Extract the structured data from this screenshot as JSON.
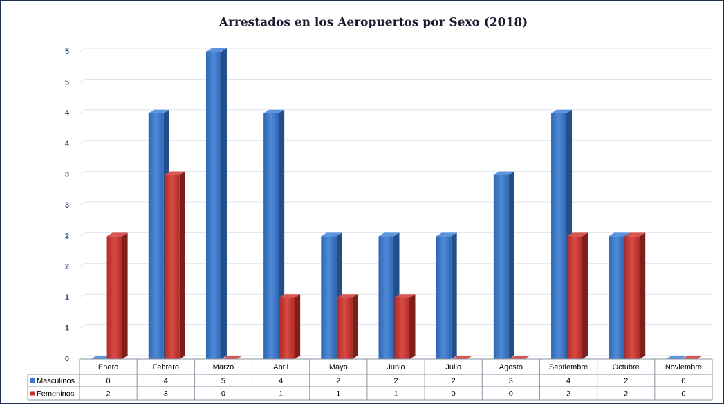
{
  "chart_data": {
    "type": "bar3d",
    "title": "Arrestados en los Aeropuertos por Sexo (2018)",
    "categories": [
      "Enero",
      "Febrero",
      "Marzo",
      "Abril",
      "Mayo",
      "Junio",
      "Julio",
      "Agosto",
      "Septiembre",
      "Octubre",
      "Noviembre"
    ],
    "series": [
      {
        "name": "Masculinos",
        "color": "#3a78c9",
        "values": [
          0,
          4,
          5,
          4,
          2,
          2,
          2,
          3,
          4,
          2,
          0
        ]
      },
      {
        "name": "Femeninos",
        "color": "#c9302c",
        "values": [
          2,
          3,
          0,
          1,
          1,
          1,
          0,
          0,
          2,
          2,
          0
        ]
      }
    ],
    "ylim": [
      0,
      5
    ],
    "yticks": [
      0,
      {
        "value": 0.5,
        "label": "1"
      },
      1,
      {
        "value": 1.5,
        "label": "2"
      },
      2,
      {
        "value": 2.5,
        "label": "3"
      },
      3,
      {
        "value": 3.5,
        "label": "4"
      },
      4,
      {
        "value": 4.5,
        "label": "5"
      },
      5
    ],
    "grid": true,
    "data_table": true
  }
}
